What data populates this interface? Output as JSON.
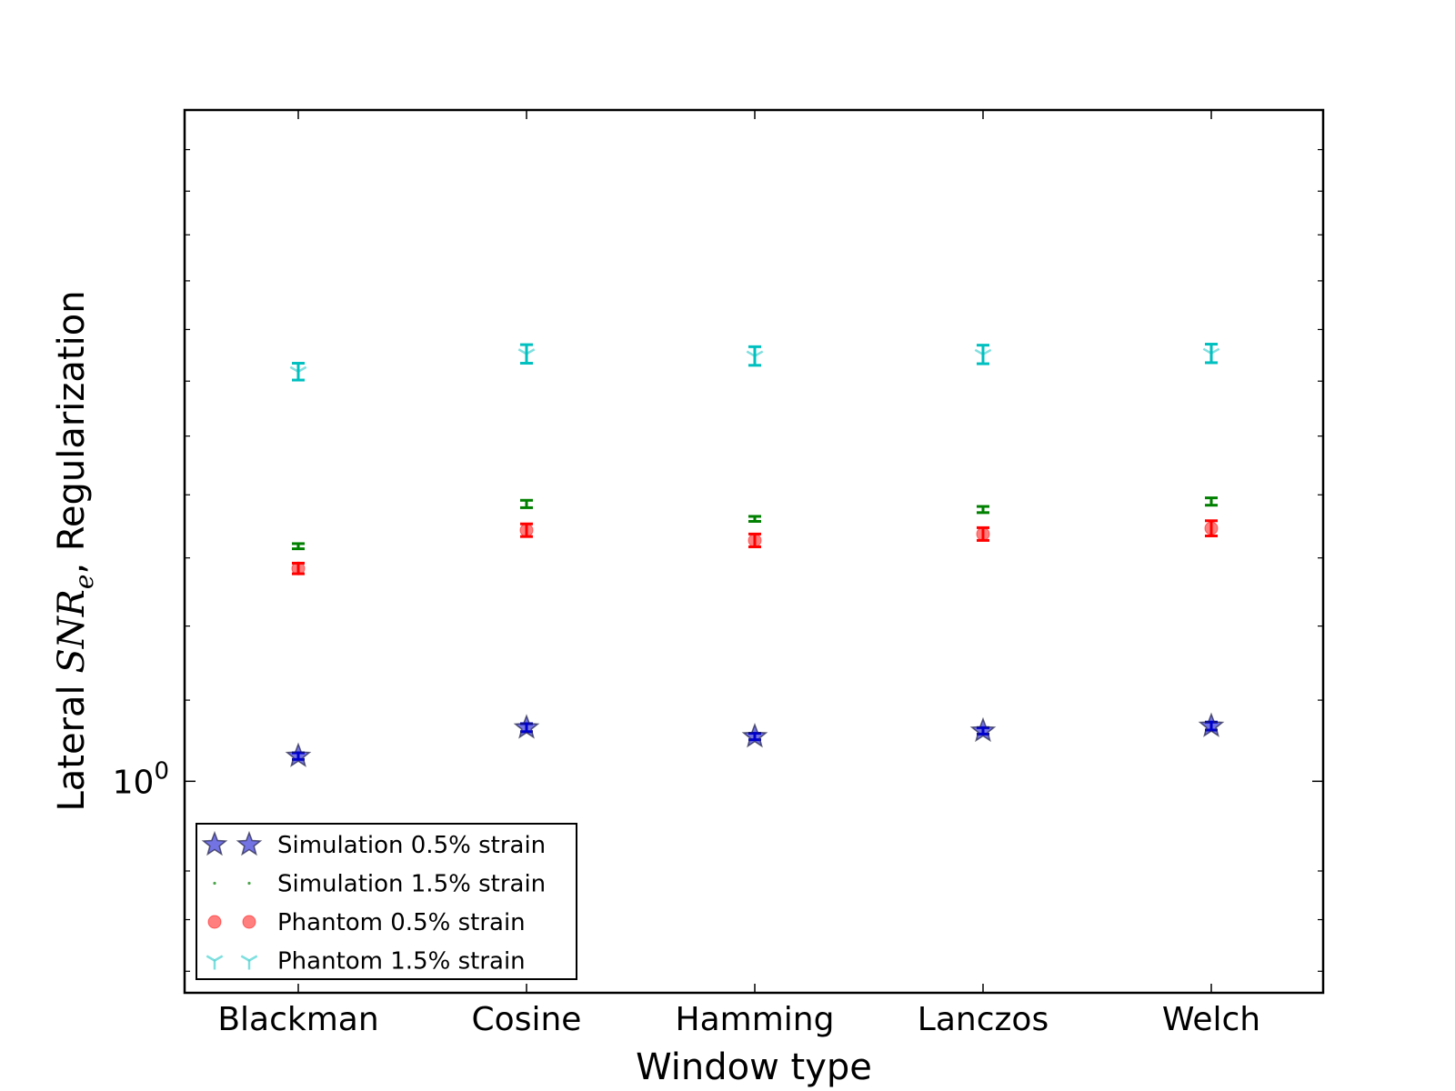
{
  "chart_data": {
    "type": "scatter",
    "xlabel": "Window type",
    "ylabel": {
      "prefix": "Lateral ",
      "math_main": "SNR",
      "math_sub": "e",
      "suffix": ", Regularization"
    },
    "yscale": "log",
    "ylim": [
      0.78,
      2.2
    ],
    "y_major_tick": {
      "value": 1.0,
      "base": "10",
      "exponent": "0"
    },
    "y_minor_ticks": [
      0.8,
      0.85,
      0.9,
      1.1,
      1.2,
      1.3,
      1.4,
      1.5,
      1.6,
      1.7,
      1.8,
      1.9,
      2.0,
      2.1
    ],
    "categories": [
      "Blackman",
      "Cosine",
      "Hamming",
      "Lanczos",
      "Welch"
    ],
    "legend_position": "lower-left",
    "series": [
      {
        "name": "Simulation 0.5% strain",
        "marker": "star",
        "color": "#0000cc",
        "values": [
          1.03,
          1.065,
          1.054,
          1.061,
          1.067
        ],
        "errors": [
          0.004,
          0.005,
          0.004,
          0.004,
          0.005
        ]
      },
      {
        "name": "Simulation 1.5% strain",
        "marker": "point",
        "color": "#008000",
        "values": [
          1.318,
          1.385,
          1.361,
          1.376,
          1.389
        ],
        "errors": [
          0.004,
          0.006,
          0.004,
          0.005,
          0.006
        ]
      },
      {
        "name": "Phantom 0.5% strain",
        "marker": "circle",
        "color": "#ff0000",
        "values": [
          1.284,
          1.343,
          1.327,
          1.337,
          1.346
        ],
        "errors": [
          0.008,
          0.01,
          0.01,
          0.01,
          0.012
        ]
      },
      {
        "name": "Phantom 1.5% strain",
        "marker": "tri_down",
        "color": "#00bfbf",
        "values": [
          1.618,
          1.652,
          1.648,
          1.651,
          1.653
        ],
        "errors": [
          0.016,
          0.018,
          0.018,
          0.018,
          0.018
        ]
      }
    ]
  }
}
